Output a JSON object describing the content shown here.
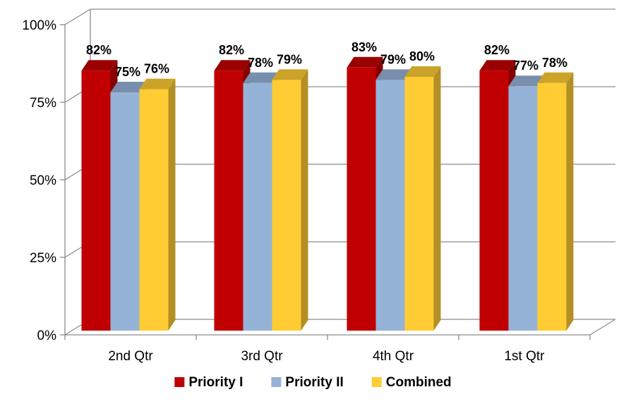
{
  "chart_data": {
    "type": "bar",
    "categories": [
      "2nd Qtr",
      "3rd Qtr",
      "4th Qtr",
      "1st Qtr"
    ],
    "series": [
      {
        "name": "Priority I",
        "values": [
          82,
          82,
          83,
          82
        ],
        "labels": [
          "82%",
          "82%",
          "83%",
          "82%"
        ],
        "color": "#c00000"
      },
      {
        "name": "Priority II",
        "values": [
          75,
          78,
          79,
          77
        ],
        "labels": [
          "75%",
          "78%",
          "79%",
          "77%"
        ],
        "color": "#95b3d7"
      },
      {
        "name": "Combined",
        "values": [
          76,
          79,
          80,
          78
        ],
        "labels": [
          "76%",
          "79%",
          "80%",
          "78%"
        ],
        "color": "#ffcc33"
      }
    ],
    "yticks": [
      0,
      25,
      50,
      75,
      100
    ],
    "ytick_labels": [
      "0%",
      "25%",
      "50%",
      "75%",
      "100%"
    ],
    "ylim": [
      0,
      100
    ],
    "grid": true,
    "legend_position": "bottom",
    "style": "3d-clustered-column"
  }
}
